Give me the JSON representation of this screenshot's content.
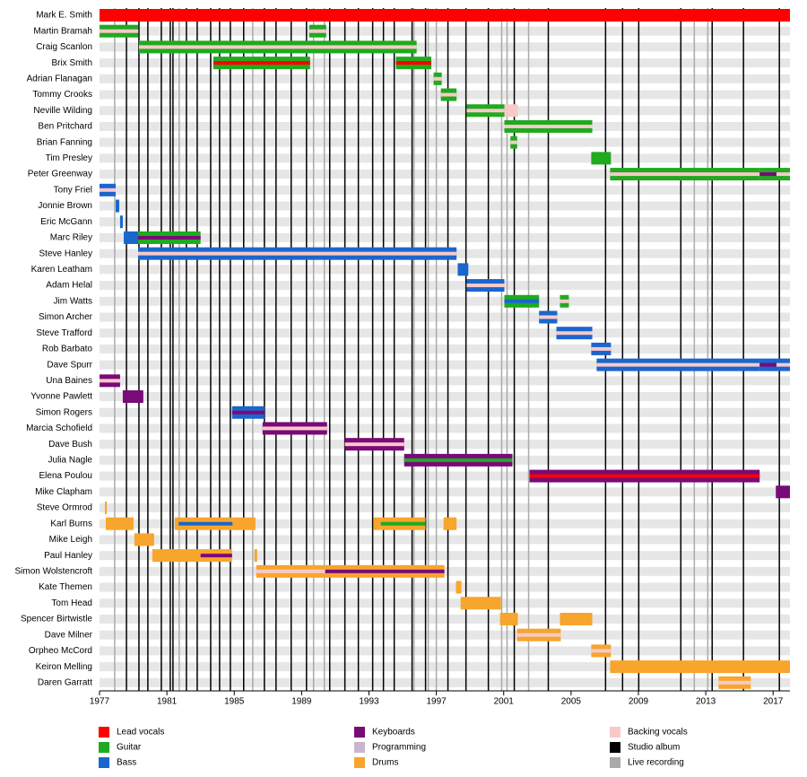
{
  "chart_data": {
    "type": "timeline",
    "xlim": [
      1977,
      2018
    ],
    "xticks": [
      1977,
      1981,
      1985,
      1989,
      1993,
      1997,
      2001,
      2005,
      2009,
      2013,
      2017
    ],
    "legend": [
      {
        "name": "Lead vocals",
        "color": "#ff0000"
      },
      {
        "name": "Guitar",
        "color": "#1faa1f"
      },
      {
        "name": "Bass",
        "color": "#1a66cc"
      },
      {
        "name": "Keyboards",
        "color": "#7a0a78"
      },
      {
        "name": "Programming",
        "color": "#c9b6cc"
      },
      {
        "name": "Drums",
        "color": "#f7a52c"
      },
      {
        "name": "Backing vocals",
        "color": "#f8c9c9"
      },
      {
        "name": "Studio album",
        "color": "#000000",
        "years": [
          1978.6,
          1979.34,
          1979.87,
          1980.67,
          1981.2,
          1981.36,
          1982.16,
          1982.8,
          1983.6,
          1984.13,
          1984.77,
          1985.56,
          1986.79,
          1987.48,
          1988.38,
          1989.29,
          1990.67,
          1991.57,
          1992.37,
          1993.22,
          1993.86,
          1994.5,
          1995.56,
          1996.36,
          1997.69,
          1998.76,
          2000.09,
          2001.63,
          2003.65,
          2007.05,
          2008.06,
          2009.02,
          2011.52,
          2013.38,
          2015.24,
          2017.37
        ]
      },
      {
        "name": "Live recording",
        "color": "#aaaaaa",
        "years": [
          1977.9,
          1981.73,
          1986.1,
          1989.71,
          1990.35,
          1995.67,
          1996.52,
          1997.0,
          2000.88,
          2001.2,
          2002.48,
          2012.32,
          2013.12
        ]
      }
    ],
    "members": [
      {
        "name": "Mark E. Smith",
        "segments": [
          {
            "role": "Lead vocals",
            "start": 1977,
            "end": 2018
          }
        ]
      },
      {
        "name": "Martin Bramah",
        "segments": [
          {
            "role": "Guitar",
            "role2": "Backing vocals",
            "start": 1977,
            "end": 1979.3
          },
          {
            "role": "Guitar",
            "role2": "Backing vocals",
            "start": 1989.45,
            "end": 1990.46
          }
        ]
      },
      {
        "name": "Craig Scanlon",
        "segments": [
          {
            "role": "Guitar",
            "role2": "Backing vocals",
            "start": 1979.34,
            "end": 1995.83
          }
        ]
      },
      {
        "name": "Brix Smith",
        "segments": [
          {
            "role": "Guitar",
            "role2": "Lead vocals",
            "start": 1983.76,
            "end": 1989.5
          },
          {
            "role": "Guitar",
            "role2": "Lead vocals",
            "start": 1994.6,
            "end": 1996.7
          }
        ]
      },
      {
        "name": "Adrian Flanagan",
        "segments": [
          {
            "role": "Guitar",
            "role2": "Backing vocals",
            "start": 1996.84,
            "end": 1997.32
          }
        ]
      },
      {
        "name": "Tommy Crooks",
        "segments": [
          {
            "role": "Guitar",
            "role2": "Backing vocals",
            "start": 1997.27,
            "end": 1998.2
          }
        ]
      },
      {
        "name": "Neville Wilding",
        "segments": [
          {
            "role": "Guitar",
            "role2": "Backing vocals",
            "start": 1998.8,
            "end": 2001.04
          },
          {
            "role": "Backing vocals",
            "start": 2001.04,
            "end": 2001.84
          }
        ]
      },
      {
        "name": "Ben Pritchard",
        "segments": [
          {
            "role": "Guitar",
            "role2": "Backing vocals",
            "start": 2001.04,
            "end": 2006.26
          }
        ]
      },
      {
        "name": "Brian Fanning",
        "segments": [
          {
            "role": "Guitar",
            "role2": "Backing vocals",
            "start": 2001.4,
            "end": 2001.8
          }
        ]
      },
      {
        "name": "Tim Presley",
        "segments": [
          {
            "role": "Guitar",
            "start": 2006.2,
            "end": 2007.37
          }
        ]
      },
      {
        "name": "Peter Greenway",
        "segments": [
          {
            "role": "Guitar",
            "role2": "Backing vocals",
            "start": 2007.32,
            "end": 2016.2
          },
          {
            "role": "Guitar",
            "role2": "Keyboards",
            "start": 2016.2,
            "end": 2017.2
          },
          {
            "role": "Guitar",
            "role2": "Backing vocals",
            "start": 2017.2,
            "end": 2018
          }
        ]
      },
      {
        "name": "Tony Friel",
        "segments": [
          {
            "role": "Bass",
            "role2": "Backing vocals",
            "start": 1977,
            "end": 1977.96
          }
        ]
      },
      {
        "name": "Jonnie Brown",
        "segments": [
          {
            "role": "Bass",
            "start": 1977.96,
            "end": 1978.17
          }
        ]
      },
      {
        "name": "Eric McGann",
        "segments": [
          {
            "role": "Bass",
            "start": 1978.22,
            "end": 1978.38
          }
        ]
      },
      {
        "name": "Marc Riley",
        "segments": [
          {
            "role": "Bass",
            "start": 1978.44,
            "end": 1979.29
          },
          {
            "role": "Guitar",
            "role2": "Keyboards",
            "start": 1979.29,
            "end": 1983.0
          }
        ]
      },
      {
        "name": "Steve Hanley",
        "segments": [
          {
            "role": "Bass",
            "role2": "Backing vocals",
            "start": 1979.29,
            "end": 1998.2
          }
        ]
      },
      {
        "name": "Karen Leatham",
        "segments": [
          {
            "role": "Bass",
            "start": 1998.27,
            "end": 1998.9
          }
        ]
      },
      {
        "name": "Adam Helal",
        "segments": [
          {
            "role": "Bass",
            "role2": "Backing vocals",
            "start": 1998.8,
            "end": 2001.04
          }
        ]
      },
      {
        "name": "Jim Watts",
        "segments": [
          {
            "role": "Guitar",
            "role2": "Bass",
            "start": 2001.04,
            "end": 2003.1
          },
          {
            "role": "Guitar",
            "role2": "Backing vocals",
            "start": 2004.34,
            "end": 2004.87
          }
        ]
      },
      {
        "name": "Simon Archer",
        "segments": [
          {
            "role": "Bass",
            "role2": "Backing vocals",
            "start": 2003.1,
            "end": 2004.18
          }
        ]
      },
      {
        "name": "Steve Trafford",
        "segments": [
          {
            "role": "Bass",
            "role2": "Backing vocals",
            "start": 2004.13,
            "end": 2006.26
          }
        ]
      },
      {
        "name": "Rob Barbato",
        "segments": [
          {
            "role": "Bass",
            "role2": "Backing vocals",
            "start": 2006.2,
            "end": 2007.37
          }
        ]
      },
      {
        "name": "Dave Spurr",
        "segments": [
          {
            "role": "Bass",
            "role2": "Backing vocals",
            "start": 2006.52,
            "end": 2016.2
          },
          {
            "role": "Bass",
            "role2": "Keyboards",
            "start": 2016.2,
            "end": 2017.2
          },
          {
            "role": "Bass",
            "role2": "Backing vocals",
            "start": 2017.2,
            "end": 2018
          }
        ]
      },
      {
        "name": "Una Baines",
        "segments": [
          {
            "role": "Keyboards",
            "role2": "Backing vocals",
            "start": 1977,
            "end": 1978.22
          }
        ]
      },
      {
        "name": "Yvonne Pawlett",
        "segments": [
          {
            "role": "Keyboards",
            "start": 1978.38,
            "end": 1979.6
          }
        ]
      },
      {
        "name": "Simon Rogers",
        "segments": [
          {
            "role": "Bass",
            "role2": "Keyboards",
            "start": 1984.87,
            "end": 1986.79
          }
        ]
      },
      {
        "name": "Marcia Schofield",
        "segments": [
          {
            "role": "Keyboards",
            "role2": "Backing vocals",
            "start": 1986.68,
            "end": 1990.51
          }
        ]
      },
      {
        "name": "Dave Bush",
        "segments": [
          {
            "role": "Keyboards",
            "role2": "Backing vocals",
            "start": 1991.57,
            "end": 1995.09
          }
        ]
      },
      {
        "name": "Julia Nagle",
        "segments": [
          {
            "role": "Keyboards",
            "role2": "Guitar",
            "start": 1995.09,
            "end": 2001.52
          }
        ]
      },
      {
        "name": "Elena Poulou",
        "segments": [
          {
            "role": "Keyboards",
            "role2": "Lead vocals",
            "start": 2002.53,
            "end": 2016.2
          }
        ]
      },
      {
        "name": "Mike Clapham",
        "segments": [
          {
            "role": "Keyboards",
            "start": 2017.16,
            "end": 2018
          }
        ]
      },
      {
        "name": "Steve Ormrod",
        "segments": [
          {
            "role": "Drums",
            "start": 1977.32,
            "end": 1977.43
          }
        ]
      },
      {
        "name": "Karl Burns",
        "segments": [
          {
            "role": "Drums",
            "start": 1977.37,
            "end": 1979.02
          },
          {
            "role": "Drums",
            "start": 1981.47,
            "end": 1981.7
          },
          {
            "role": "Drums",
            "role2": "Bass",
            "start": 1981.7,
            "end": 1984.9
          },
          {
            "role": "Drums",
            "start": 1984.9,
            "end": 1986.26
          },
          {
            "role": "Drums",
            "start": 1993.28,
            "end": 1993.7
          },
          {
            "role": "Drums",
            "role2": "Guitar",
            "start": 1993.7,
            "end": 1996.36
          },
          {
            "role": "Drums",
            "start": 1997.43,
            "end": 1998.2
          }
        ]
      },
      {
        "name": "Mike Leigh",
        "segments": [
          {
            "role": "Drums",
            "start": 1979.07,
            "end": 1980.24
          }
        ]
      },
      {
        "name": "Paul Hanley",
        "segments": [
          {
            "role": "Drums",
            "start": 1980.14,
            "end": 1983.0
          },
          {
            "role": "Drums",
            "role2": "Keyboards",
            "start": 1983.0,
            "end": 1984.87
          },
          {
            "role": "Drums",
            "start": 1986.2,
            "end": 1986.36
          }
        ]
      },
      {
        "name": "Simon Wolstencroft",
        "segments": [
          {
            "role": "Drums",
            "role2": "Backing vocals",
            "start": 1986.31,
            "end": 1990.4
          },
          {
            "role": "Drums",
            "role2": "Keyboards",
            "start": 1990.4,
            "end": 1997.48
          }
        ]
      },
      {
        "name": "Kate Themen",
        "segments": [
          {
            "role": "Drums",
            "start": 1998.17,
            "end": 1998.49
          }
        ]
      },
      {
        "name": "Tom Head",
        "segments": [
          {
            "role": "Drums",
            "start": 1998.44,
            "end": 2000.83
          }
        ]
      },
      {
        "name": "Spencer Birtwistle",
        "segments": [
          {
            "role": "Drums",
            "start": 2000.78,
            "end": 2001.84
          },
          {
            "role": "Drums",
            "start": 2004.34,
            "end": 2006.26
          }
        ]
      },
      {
        "name": "Dave Milner",
        "segments": [
          {
            "role": "Drums",
            "role2": "Backing vocals",
            "start": 2001.79,
            "end": 2004.39
          }
        ]
      },
      {
        "name": "Orpheo McCord",
        "segments": [
          {
            "role": "Drums",
            "role2": "Backing vocals",
            "start": 2006.2,
            "end": 2007.37
          }
        ]
      },
      {
        "name": "Keiron Melling",
        "segments": [
          {
            "role": "Drums",
            "start": 2007.32,
            "end": 2018
          }
        ]
      },
      {
        "name": "Daren Garratt",
        "segments": [
          {
            "role": "Drums",
            "role2": "Backing vocals",
            "start": 2013.76,
            "end": 2015.67
          }
        ]
      }
    ]
  }
}
